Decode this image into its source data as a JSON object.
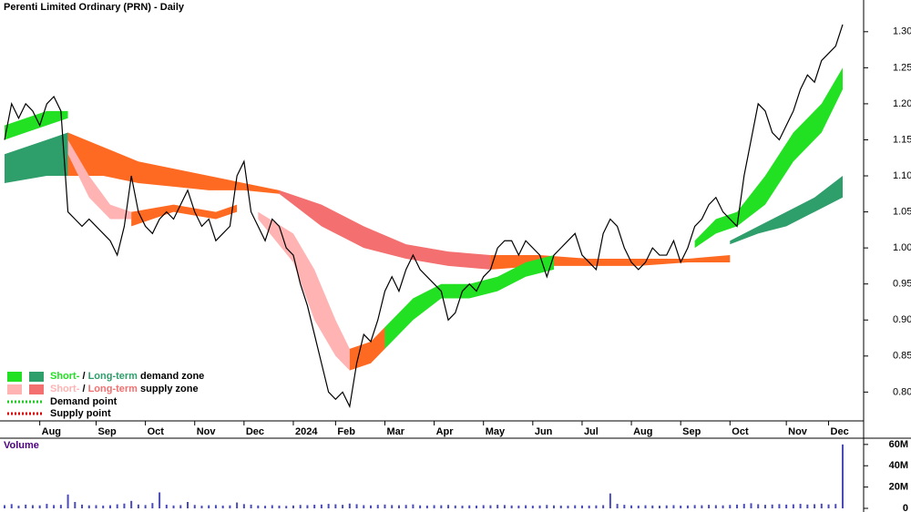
{
  "chart_data": {
    "type": "price-volume",
    "title": "Perenti Limited Ordinary (PRN) - Daily",
    "price": {
      "color": "#000000",
      "x": [
        0,
        1,
        2,
        3,
        4,
        5,
        6,
        7,
        8,
        9,
        10,
        11,
        12,
        13,
        14,
        15,
        16,
        17,
        18,
        19,
        20,
        21,
        22,
        23,
        24,
        25,
        26,
        27,
        28,
        29,
        30,
        31,
        32,
        33,
        34,
        35,
        36,
        37,
        38,
        39,
        40,
        41,
        42,
        43,
        44,
        45,
        46,
        47,
        48,
        49,
        50,
        51,
        52,
        53,
        54,
        55,
        56,
        57,
        58,
        59,
        60,
        61,
        62,
        63,
        64,
        65,
        66,
        67,
        68,
        69,
        70,
        71,
        72,
        73,
        74,
        75,
        76,
        77,
        78,
        79,
        80,
        81,
        82,
        83,
        84,
        85,
        86,
        87,
        88,
        89,
        90,
        91,
        92,
        93,
        94,
        95,
        96,
        97,
        98,
        99,
        100,
        101,
        102,
        103,
        104,
        105,
        106,
        107,
        108,
        109,
        110,
        111,
        112,
        113,
        114,
        115,
        116,
        117,
        118,
        119
      ],
      "values": [
        1.15,
        1.2,
        1.18,
        1.2,
        1.19,
        1.17,
        1.2,
        1.21,
        1.19,
        1.05,
        1.04,
        1.03,
        1.04,
        1.03,
        1.02,
        1.01,
        0.99,
        1.03,
        1.1,
        1.05,
        1.03,
        1.02,
        1.04,
        1.05,
        1.04,
        1.06,
        1.08,
        1.05,
        1.03,
        1.04,
        1.01,
        1.02,
        1.03,
        1.1,
        1.12,
        1.05,
        1.03,
        1.01,
        1.04,
        1.03,
        1.0,
        0.99,
        0.95,
        0.92,
        0.88,
        0.84,
        0.8,
        0.79,
        0.8,
        0.78,
        0.84,
        0.88,
        0.87,
        0.9,
        0.94,
        0.96,
        0.94,
        0.97,
        0.99,
        0.97,
        0.96,
        0.95,
        0.94,
        0.9,
        0.91,
        0.94,
        0.95,
        0.94,
        0.96,
        0.97,
        1.0,
        1.01,
        1.01,
        0.99,
        1.01,
        1.0,
        0.99,
        0.96,
        0.99,
        1.0,
        1.01,
        1.02,
        0.99,
        0.98,
        0.97,
        1.02,
        1.04,
        1.03,
        1.0,
        0.98,
        0.97,
        0.98,
        1.0,
        0.99,
        0.99,
        1.01,
        0.98,
        1.0,
        1.03,
        1.04,
        1.06,
        1.07,
        1.05,
        1.04,
        1.03,
        1.1,
        1.15,
        1.2,
        1.19,
        1.16,
        1.15,
        1.17,
        1.19,
        1.22,
        1.24,
        1.23,
        1.26,
        1.27,
        1.28,
        1.31
      ]
    },
    "zones": [
      {
        "color": "#2e9e6a",
        "x": [
          0,
          3,
          6,
          9
        ],
        "upper": [
          1.13,
          1.14,
          1.15,
          1.16
        ],
        "lower": [
          1.09,
          1.095,
          1.1,
          1.1
        ]
      },
      {
        "color": "#ff6a22",
        "x": [
          9,
          14,
          19,
          24,
          29,
          34,
          39
        ],
        "upper": [
          1.16,
          1.14,
          1.12,
          1.11,
          1.1,
          1.09,
          1.08
        ],
        "lower": [
          1.1,
          1.1,
          1.09,
          1.085,
          1.08,
          1.08,
          1.075
        ]
      },
      {
        "color": "#f46f6f",
        "x": [
          39,
          45,
          51,
          57,
          63,
          69
        ],
        "upper": [
          1.08,
          1.06,
          1.03,
          1.005,
          0.995,
          0.99
        ],
        "lower": [
          1.075,
          1.03,
          1.0,
          0.985,
          0.975,
          0.97
        ]
      },
      {
        "color": "#ff6a22",
        "x": [
          69,
          76,
          83,
          90,
          97,
          103
        ],
        "upper": [
          0.99,
          0.99,
          0.985,
          0.985,
          0.985,
          0.99
        ],
        "lower": [
          0.97,
          0.975,
          0.975,
          0.975,
          0.98,
          0.98
        ]
      },
      {
        "color": "#2e9e6a",
        "x": [
          103,
          107,
          111,
          115,
          119
        ],
        "upper": [
          1.01,
          1.03,
          1.05,
          1.07,
          1.1
        ],
        "lower": [
          1.005,
          1.02,
          1.03,
          1.05,
          1.07
        ]
      },
      {
        "color": "#22e022",
        "x": [
          0,
          3,
          6,
          9
        ],
        "upper": [
          1.17,
          1.18,
          1.19,
          1.19
        ],
        "lower": [
          1.15,
          1.16,
          1.17,
          1.18
        ]
      },
      {
        "color": "#ffb3b3",
        "x": [
          9,
          12,
          15,
          18
        ],
        "upper": [
          1.15,
          1.1,
          1.06,
          1.05
        ],
        "lower": [
          1.13,
          1.07,
          1.04,
          1.04
        ]
      },
      {
        "color": "#ff6a22",
        "x": [
          18,
          24,
          30,
          33
        ],
        "upper": [
          1.05,
          1.06,
          1.05,
          1.06
        ],
        "lower": [
          1.03,
          1.05,
          1.04,
          1.05
        ]
      },
      {
        "color": "#ffb3b3",
        "x": [
          36,
          41,
          44,
          47,
          49
        ],
        "upper": [
          1.05,
          1.02,
          0.97,
          0.9,
          0.86
        ],
        "lower": [
          1.04,
          0.98,
          0.9,
          0.85,
          0.83
        ]
      },
      {
        "color": "#ff6a22",
        "x": [
          49,
          52,
          54
        ],
        "upper": [
          0.86,
          0.87,
          0.89
        ],
        "lower": [
          0.83,
          0.84,
          0.86
        ]
      },
      {
        "color": "#22e022",
        "x": [
          54,
          58,
          62,
          66,
          70,
          74,
          78
        ],
        "upper": [
          0.89,
          0.93,
          0.95,
          0.95,
          0.96,
          0.98,
          0.99
        ],
        "lower": [
          0.86,
          0.9,
          0.93,
          0.93,
          0.94,
          0.96,
          0.97
        ]
      },
      {
        "color": "#22e022",
        "x": [
          98,
          101,
          104,
          108,
          112,
          116,
          119
        ],
        "upper": [
          1.01,
          1.04,
          1.05,
          1.1,
          1.16,
          1.2,
          1.25
        ],
        "lower": [
          1.0,
          1.02,
          1.03,
          1.06,
          1.12,
          1.16,
          1.22
        ]
      }
    ],
    "xlim": [
      0,
      119
    ],
    "xticks": [
      {
        "value": 5,
        "label": "Aug"
      },
      {
        "value": 13,
        "label": "Sep"
      },
      {
        "value": 20,
        "label": "Oct"
      },
      {
        "value": 27,
        "label": "Nov"
      },
      {
        "value": 34,
        "label": "Dec"
      },
      {
        "value": 41,
        "label": "2024"
      },
      {
        "value": 47,
        "label": "Feb"
      },
      {
        "value": 54,
        "label": "Mar"
      },
      {
        "value": 61,
        "label": "Apr"
      },
      {
        "value": 68,
        "label": "May"
      },
      {
        "value": 75,
        "label": "Jun"
      },
      {
        "value": 82,
        "label": "Jul"
      },
      {
        "value": 89,
        "label": "Aug"
      },
      {
        "value": 96,
        "label": "Sep"
      },
      {
        "value": 103,
        "label": "Oct"
      },
      {
        "value": 111,
        "label": "Nov"
      },
      {
        "value": 117,
        "label": "Dec"
      }
    ],
    "ylim": [
      0.76,
      1.344
    ],
    "yticks": [
      {
        "value": 0.8,
        "label": "0.80"
      },
      0.85,
      {
        "value": 0.9,
        "label": "0.90"
      },
      0.95,
      {
        "value": 1.0,
        "label": "1.00"
      },
      1.05,
      {
        "value": 1.1,
        "label": "1.10"
      },
      1.15,
      {
        "value": 1.2,
        "label": "1.20"
      },
      1.25,
      {
        "value": 1.3,
        "label": "1.30"
      }
    ],
    "volume": {
      "label": "Volume",
      "color": "#4a4ab8",
      "values": [
        3000000,
        4000000,
        2500000,
        3500000,
        3000000,
        2800000,
        4200000,
        3100000,
        3300000,
        13000000,
        6000000,
        3500000,
        2800000,
        3000000,
        2600000,
        2900000,
        3800000,
        4500000,
        7000000,
        3600000,
        3100000,
        5000000,
        15000000,
        3400000,
        2700000,
        3000000,
        6000000,
        3200000,
        2500000,
        2900000,
        3100000,
        2600000,
        2800000,
        5500000,
        4000000,
        3500000,
        2700000,
        2400000,
        3000000,
        2600000,
        2300000,
        2700000,
        3200000,
        3000000,
        3400000,
        3600000,
        4200000,
        3800000,
        3300000,
        4500000,
        3900000,
        3000000,
        2800000,
        3300000,
        3600000,
        3100000,
        2900000,
        3200000,
        3700000,
        2800000,
        2600000,
        3000000,
        2900000,
        3200000,
        2700000,
        2500000,
        2800000,
        2600000,
        3000000,
        2900000,
        3300000,
        3100000,
        2700000,
        2600000,
        2900000,
        2500000,
        2700000,
        3200000,
        2800000,
        2600000,
        2500000,
        2900000,
        2700000,
        2600000,
        2800000,
        3000000,
        14000000,
        4200000,
        3300000,
        2800000,
        2600000,
        2900000,
        2700000,
        2500000,
        2800000,
        3000000,
        2600000,
        2700000,
        3100000,
        2900000,
        3300000,
        3000000,
        2800000,
        3200000,
        3500000,
        4200000,
        4800000,
        3900000,
        3300000,
        3600000,
        4000000,
        3500000,
        3800000,
        4200000,
        3600000,
        3900000,
        4400000,
        3700000,
        4100000,
        60000000
      ]
    },
    "y2lim": [
      0,
      65000000
    ],
    "y2ticks": [
      0,
      {
        "value": 20000000,
        "label": "20M"
      },
      {
        "value": 40000000,
        "label": "40M"
      },
      {
        "value": 60000000,
        "label": "60M"
      }
    ],
    "legend": [
      {
        "colors": [
          "#22e022",
          "#2e9e6a"
        ],
        "short": "Short-",
        "sep": " / ",
        "long": "Long-term",
        "rest": " demand zone"
      },
      {
        "colors": [
          "#ffb3b3",
          "#f46f6f"
        ],
        "short": "Short-",
        "sep": " / ",
        "long": "Long-term",
        "rest": " supply zone"
      }
    ],
    "points": [
      {
        "color": "#22cc22",
        "label": "Demand point"
      },
      {
        "color": "#dd0000",
        "label": "Supply point"
      }
    ]
  }
}
